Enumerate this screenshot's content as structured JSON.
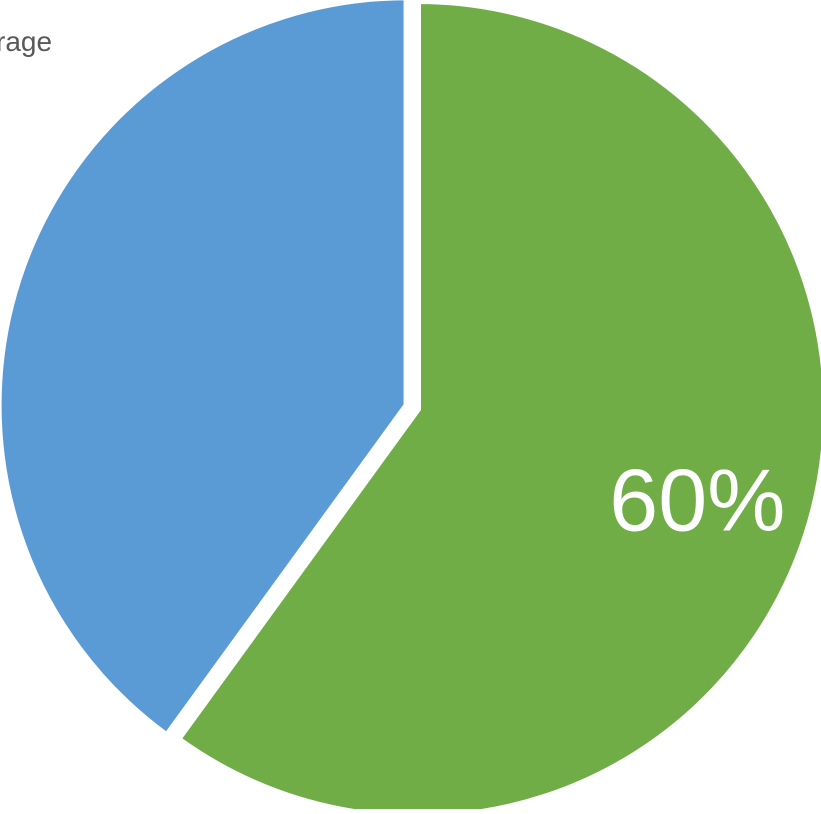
{
  "chart_data": {
    "type": "pie",
    "legend_fragment": "rage",
    "start_angle_deg": 0,
    "direction": "clockwise",
    "exploded_slice": 1,
    "slices": [
      {
        "name": "",
        "value": 60,
        "label": "60%",
        "color": "#70AD47",
        "label_color": "#FFFFFF"
      },
      {
        "name": "",
        "value": 40,
        "label": "",
        "color": "#5B9BD5",
        "label_color": "#FFFFFF"
      }
    ]
  }
}
